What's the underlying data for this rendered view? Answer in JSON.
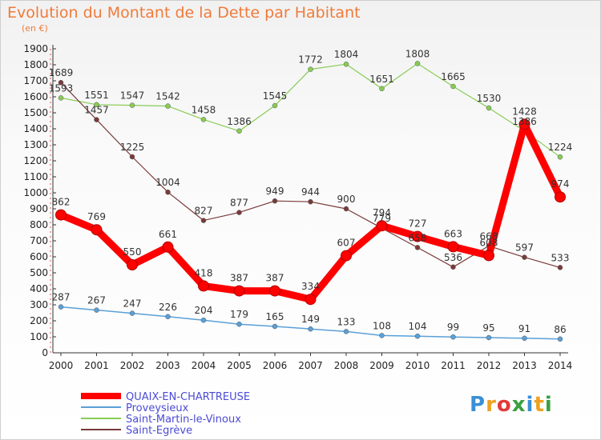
{
  "title": "Evolution du Montant de la Dette par Habitant",
  "subtitle": "(en €)",
  "watermark": "Proxiti",
  "chart_data": {
    "type": "line",
    "title": "Evolution du Montant de la Dette par Habitant",
    "subtitle": "(en €)",
    "xlabel": "",
    "ylabel": "",
    "x": [
      "2000",
      "2001",
      "2002",
      "2003",
      "2004",
      "2005",
      "2006",
      "2007",
      "2008",
      "2009",
      "2010",
      "2011",
      "2012",
      "2013",
      "2014"
    ],
    "ylim": [
      0,
      1900
    ],
    "yticks": [
      0,
      100,
      200,
      300,
      400,
      500,
      600,
      700,
      800,
      900,
      1000,
      1100,
      1200,
      1300,
      1400,
      1500,
      1600,
      1700,
      1800,
      1900
    ],
    "grid": false,
    "legend_position": "bottom-left",
    "series": [
      {
        "name": "QUAIX-EN-CHARTREUSE",
        "color": "#ff0000",
        "values": [
          862,
          769,
          550,
          661,
          418,
          387,
          387,
          334,
          607,
          794,
          727,
          663,
          608,
          1428,
          974
        ],
        "labels": [
          "862",
          "769",
          "550",
          "661",
          "418",
          "387",
          "387",
          "334",
          "607",
          "794",
          "727",
          "663",
          "608",
          "1428",
          "974"
        ]
      },
      {
        "name": "Proveysieux",
        "color": "#5aa0d8",
        "values": [
          287,
          267,
          247,
          226,
          204,
          179,
          165,
          149,
          133,
          108,
          104,
          99,
          95,
          91,
          86
        ],
        "labels": [
          "287",
          "267",
          "247",
          "226",
          "204",
          "179",
          "165",
          "149",
          "133",
          "108",
          "104",
          "99",
          "95",
          "91",
          "86"
        ]
      },
      {
        "name": "Saint-Martin-le-Vinoux",
        "color": "#88cc55",
        "values": [
          1593,
          1551,
          1547,
          1542,
          1458,
          1386,
          1545,
          1772,
          1804,
          1651,
          1808,
          1665,
          1530,
          1386,
          1224
        ],
        "labels": [
          "1593",
          "1551",
          "1547",
          "1542",
          "1458",
          "1386",
          "1545",
          "1772",
          "1804",
          "1651",
          "1808",
          "1665",
          "1530",
          "1386",
          "1224"
        ]
      },
      {
        "name": "Saint-Egrève",
        "color": "#7a3a3a",
        "values": [
          1689,
          1457,
          1225,
          1004,
          827,
          877,
          949,
          944,
          900,
          779,
          658,
          536,
          668,
          597,
          533
        ],
        "labels": [
          "1689",
          "1457",
          "1225",
          "1004",
          "827",
          "877",
          "949",
          "944",
          "900",
          "779",
          "658",
          "536",
          "668",
          "597",
          "533"
        ]
      }
    ]
  }
}
